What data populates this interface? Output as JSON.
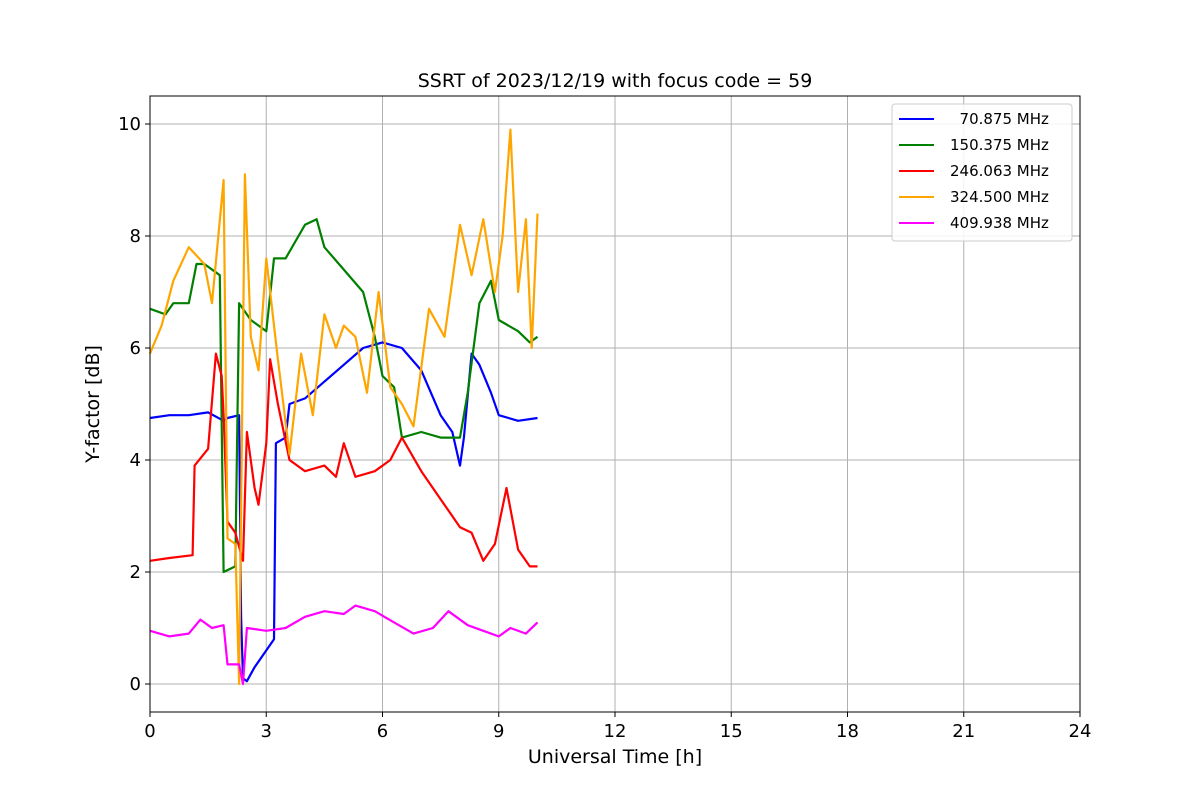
{
  "chart_data": {
    "type": "line",
    "title": "SSRT of 2023/12/19 with focus code = 59",
    "xlabel": "Universal Time [h]",
    "ylabel": "Y-factor [dB]",
    "xlim": [
      0,
      24
    ],
    "ylim": [
      -0.5,
      10.5
    ],
    "xticks": [
      0,
      3,
      6,
      9,
      12,
      15,
      18,
      21,
      24
    ],
    "yticks": [
      0,
      2,
      4,
      6,
      8,
      10
    ],
    "grid": true,
    "legend_position": "top-right",
    "series": [
      {
        "name": "  70.875 MHz",
        "color": "#0000ff",
        "points": [
          [
            0,
            4.75
          ],
          [
            0.5,
            4.8
          ],
          [
            1,
            4.8
          ],
          [
            1.5,
            4.85
          ],
          [
            1.9,
            4.7
          ],
          [
            2.0,
            4.75
          ],
          [
            2.3,
            4.8
          ],
          [
            2.35,
            1.2
          ],
          [
            2.4,
            0.1
          ],
          [
            2.5,
            0.05
          ],
          [
            2.7,
            0.3
          ],
          [
            3.0,
            0.6
          ],
          [
            3.2,
            0.8
          ],
          [
            3.25,
            4.3
          ],
          [
            3.5,
            4.4
          ],
          [
            3.6,
            5.0
          ],
          [
            4.0,
            5.1
          ],
          [
            4.5,
            5.4
          ],
          [
            5.0,
            5.7
          ],
          [
            5.5,
            6.0
          ],
          [
            6.0,
            6.1
          ],
          [
            6.5,
            6.0
          ],
          [
            7.0,
            5.6
          ],
          [
            7.5,
            4.8
          ],
          [
            7.8,
            4.5
          ],
          [
            8.0,
            3.9
          ],
          [
            8.1,
            4.4
          ],
          [
            8.3,
            5.9
          ],
          [
            8.5,
            5.7
          ],
          [
            8.8,
            5.2
          ],
          [
            9.0,
            4.8
          ],
          [
            9.5,
            4.7
          ],
          [
            10,
            4.75
          ]
        ]
      },
      {
        "name": "150.375 MHz",
        "color": "#008000",
        "points": [
          [
            0,
            6.7
          ],
          [
            0.4,
            6.6
          ],
          [
            0.6,
            6.8
          ],
          [
            1.0,
            6.8
          ],
          [
            1.2,
            7.5
          ],
          [
            1.4,
            7.5
          ],
          [
            1.8,
            7.3
          ],
          [
            1.9,
            2.0
          ],
          [
            2.2,
            2.1
          ],
          [
            2.3,
            6.8
          ],
          [
            2.6,
            6.5
          ],
          [
            3.0,
            6.3
          ],
          [
            3.2,
            7.6
          ],
          [
            3.5,
            7.6
          ],
          [
            4.0,
            8.2
          ],
          [
            4.3,
            8.3
          ],
          [
            4.5,
            7.8
          ],
          [
            5.0,
            7.4
          ],
          [
            5.5,
            7.0
          ],
          [
            5.8,
            6.2
          ],
          [
            6.0,
            5.5
          ],
          [
            6.3,
            5.3
          ],
          [
            6.5,
            4.4
          ],
          [
            7.0,
            4.5
          ],
          [
            7.5,
            4.4
          ],
          [
            8.0,
            4.4
          ],
          [
            8.2,
            5.2
          ],
          [
            8.5,
            6.8
          ],
          [
            8.8,
            7.2
          ],
          [
            9.0,
            6.5
          ],
          [
            9.5,
            6.3
          ],
          [
            9.8,
            6.1
          ],
          [
            10,
            6.2
          ]
        ]
      },
      {
        "name": "246.063 MHz",
        "color": "#ff0000",
        "points": [
          [
            0,
            2.2
          ],
          [
            0.5,
            2.25
          ],
          [
            1.1,
            2.3
          ],
          [
            1.15,
            3.9
          ],
          [
            1.5,
            4.2
          ],
          [
            1.7,
            5.9
          ],
          [
            1.85,
            5.5
          ],
          [
            1.9,
            4.8
          ],
          [
            2.0,
            2.9
          ],
          [
            2.2,
            2.7
          ],
          [
            2.4,
            2.2
          ],
          [
            2.5,
            4.5
          ],
          [
            2.7,
            3.5
          ],
          [
            2.8,
            3.2
          ],
          [
            3.0,
            4.3
          ],
          [
            3.1,
            5.8
          ],
          [
            3.3,
            5.0
          ],
          [
            3.6,
            4.0
          ],
          [
            4.0,
            3.8
          ],
          [
            4.5,
            3.9
          ],
          [
            4.8,
            3.7
          ],
          [
            5.0,
            4.3
          ],
          [
            5.3,
            3.7
          ],
          [
            5.8,
            3.8
          ],
          [
            6.2,
            4.0
          ],
          [
            6.5,
            4.4
          ],
          [
            7.0,
            3.8
          ],
          [
            7.5,
            3.3
          ],
          [
            8.0,
            2.8
          ],
          [
            8.3,
            2.7
          ],
          [
            8.6,
            2.2
          ],
          [
            8.9,
            2.5
          ],
          [
            9.2,
            3.5
          ],
          [
            9.5,
            2.4
          ],
          [
            9.8,
            2.1
          ],
          [
            10,
            2.1
          ]
        ]
      },
      {
        "name": "324.500 MHz",
        "color": "#ffa500",
        "points": [
          [
            0,
            5.9
          ],
          [
            0.3,
            6.4
          ],
          [
            0.6,
            7.2
          ],
          [
            1.0,
            7.8
          ],
          [
            1.4,
            7.5
          ],
          [
            1.6,
            6.8
          ],
          [
            1.9,
            9.0
          ],
          [
            2.0,
            2.6
          ],
          [
            2.2,
            2.5
          ],
          [
            2.3,
            0.0
          ],
          [
            2.45,
            9.1
          ],
          [
            2.6,
            6.2
          ],
          [
            2.8,
            5.6
          ],
          [
            3.0,
            7.6
          ],
          [
            3.3,
            5.8
          ],
          [
            3.6,
            4.1
          ],
          [
            3.9,
            5.9
          ],
          [
            4.2,
            4.8
          ],
          [
            4.5,
            6.6
          ],
          [
            4.8,
            6.0
          ],
          [
            5.0,
            6.4
          ],
          [
            5.3,
            6.2
          ],
          [
            5.6,
            5.2
          ],
          [
            5.9,
            7.0
          ],
          [
            6.2,
            5.3
          ],
          [
            6.5,
            5.0
          ],
          [
            6.8,
            4.6
          ],
          [
            7.2,
            6.7
          ],
          [
            7.6,
            6.2
          ],
          [
            8.0,
            8.2
          ],
          [
            8.3,
            7.3
          ],
          [
            8.6,
            8.3
          ],
          [
            8.9,
            7.0
          ],
          [
            9.1,
            8.0
          ],
          [
            9.3,
            9.9
          ],
          [
            9.5,
            7.0
          ],
          [
            9.7,
            8.3
          ],
          [
            9.85,
            6.0
          ],
          [
            10,
            8.4
          ]
        ]
      },
      {
        "name": "409.938 MHz",
        "color": "#ff00ff",
        "points": [
          [
            0,
            0.95
          ],
          [
            0.5,
            0.85
          ],
          [
            1.0,
            0.9
          ],
          [
            1.3,
            1.15
          ],
          [
            1.6,
            1.0
          ],
          [
            1.9,
            1.05
          ],
          [
            2.0,
            0.35
          ],
          [
            2.3,
            0.35
          ],
          [
            2.4,
            0.0
          ],
          [
            2.5,
            1.0
          ],
          [
            3.0,
            0.95
          ],
          [
            3.5,
            1.0
          ],
          [
            4.0,
            1.2
          ],
          [
            4.5,
            1.3
          ],
          [
            5.0,
            1.25
          ],
          [
            5.3,
            1.4
          ],
          [
            5.8,
            1.3
          ],
          [
            6.3,
            1.1
          ],
          [
            6.8,
            0.9
          ],
          [
            7.3,
            1.0
          ],
          [
            7.7,
            1.3
          ],
          [
            8.2,
            1.05
          ],
          [
            8.6,
            0.95
          ],
          [
            9.0,
            0.85
          ],
          [
            9.3,
            1.0
          ],
          [
            9.7,
            0.9
          ],
          [
            10,
            1.1
          ]
        ]
      }
    ]
  }
}
